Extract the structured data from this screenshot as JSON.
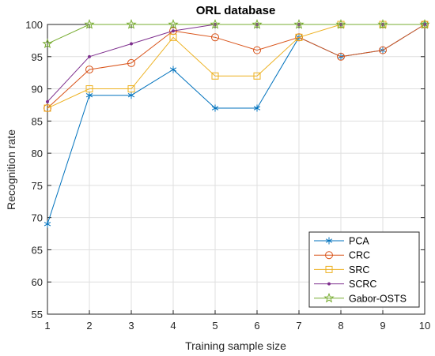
{
  "chart_data": {
    "type": "line",
    "title": "ORL database",
    "xlabel": "Training sample size",
    "ylabel": "Recognition rate",
    "xlim": [
      1,
      10
    ],
    "ylim": [
      55,
      100
    ],
    "xticks": [
      1,
      2,
      3,
      4,
      5,
      6,
      7,
      8,
      9,
      10
    ],
    "yticks": [
      55,
      60,
      65,
      70,
      75,
      80,
      85,
      90,
      95,
      100
    ],
    "grid": true,
    "legend_position": "bottom-right",
    "x": [
      1,
      2,
      3,
      4,
      5,
      6,
      7,
      8,
      9,
      10
    ],
    "series": [
      {
        "name": "PCA",
        "color": "#0072BD",
        "marker": "asterisk",
        "values": [
          69,
          89,
          89,
          93,
          87,
          87,
          98,
          95,
          96,
          100
        ]
      },
      {
        "name": "CRC",
        "color": "#D95319",
        "marker": "circle",
        "values": [
          87,
          93,
          94,
          99,
          98,
          96,
          98,
          95,
          96,
          100
        ]
      },
      {
        "name": "SRC",
        "color": "#EDB120",
        "marker": "square",
        "values": [
          87,
          90,
          90,
          98,
          92,
          92,
          98,
          100,
          100,
          100
        ]
      },
      {
        "name": "SCRC",
        "color": "#7E2F8E",
        "marker": "dot",
        "values": [
          88,
          95,
          97,
          99,
          100,
          100,
          100,
          100,
          100,
          100
        ]
      },
      {
        "name": "Gabor-OSTS",
        "color": "#77AC30",
        "marker": "pentagram",
        "values": [
          97,
          100,
          100,
          100,
          100,
          100,
          100,
          100,
          100,
          100
        ]
      }
    ]
  }
}
